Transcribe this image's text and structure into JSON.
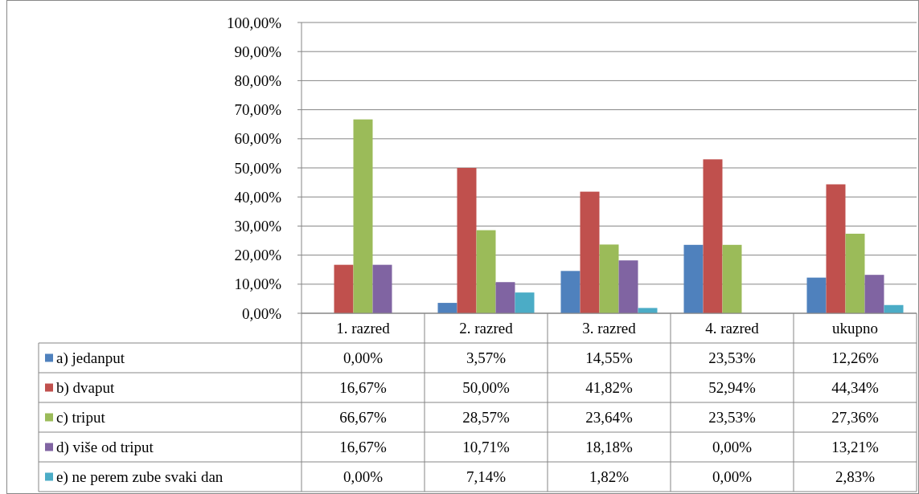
{
  "chart_data": {
    "type": "bar",
    "categories": [
      "1. razred",
      "2. razred",
      "3. razred",
      "4. razred",
      "ukupno"
    ],
    "series": [
      {
        "name": "a) jedanput",
        "color": "#4f81bd",
        "values": [
          0,
          3.57,
          14.55,
          23.53,
          12.26
        ],
        "value_labels": [
          "0,00%",
          "3,57%",
          "14,55%",
          "23,53%",
          "12,26%"
        ]
      },
      {
        "name": "b) dvaput",
        "color": "#c0504d",
        "values": [
          16.67,
          50,
          41.82,
          52.94,
          44.34
        ],
        "value_labels": [
          "16,67%",
          "50,00%",
          "41,82%",
          "52,94%",
          "44,34%"
        ]
      },
      {
        "name": "c) triput",
        "color": "#9bbb59",
        "values": [
          66.67,
          28.57,
          23.64,
          23.53,
          27.36
        ],
        "value_labels": [
          "66,67%",
          "28,57%",
          "23,64%",
          "23,53%",
          "27,36%"
        ]
      },
      {
        "name": "d) više od triput",
        "color": "#8064a2",
        "values": [
          16.67,
          10.71,
          18.18,
          0,
          13.21
        ],
        "value_labels": [
          "16,67%",
          "10,71%",
          "18,18%",
          "0,00%",
          "13,21%"
        ]
      },
      {
        "name": "e) ne perem zube svaki dan",
        "color": "#4bacc6",
        "values": [
          0,
          7.14,
          1.82,
          0,
          2.83
        ],
        "value_labels": [
          "0,00%",
          "7,14%",
          "1,82%",
          "0,00%",
          "2,83%"
        ]
      }
    ],
    "ylim": [
      0,
      100
    ],
    "yticks": [
      {
        "value": 0,
        "label": "0,00%"
      },
      {
        "value": 10,
        "label": "10,00%"
      },
      {
        "value": 20,
        "label": "20,00%"
      },
      {
        "value": 30,
        "label": "30,00%"
      },
      {
        "value": 40,
        "label": "40,00%"
      },
      {
        "value": 50,
        "label": "50,00%"
      },
      {
        "value": 60,
        "label": "60,00%"
      },
      {
        "value": 70,
        "label": "70,00%"
      },
      {
        "value": 80,
        "label": "80,00%"
      },
      {
        "value": 90,
        "label": "90,00%"
      },
      {
        "value": 100,
        "label": "100,00%"
      }
    ],
    "grid": "y",
    "legend": "bottom"
  }
}
